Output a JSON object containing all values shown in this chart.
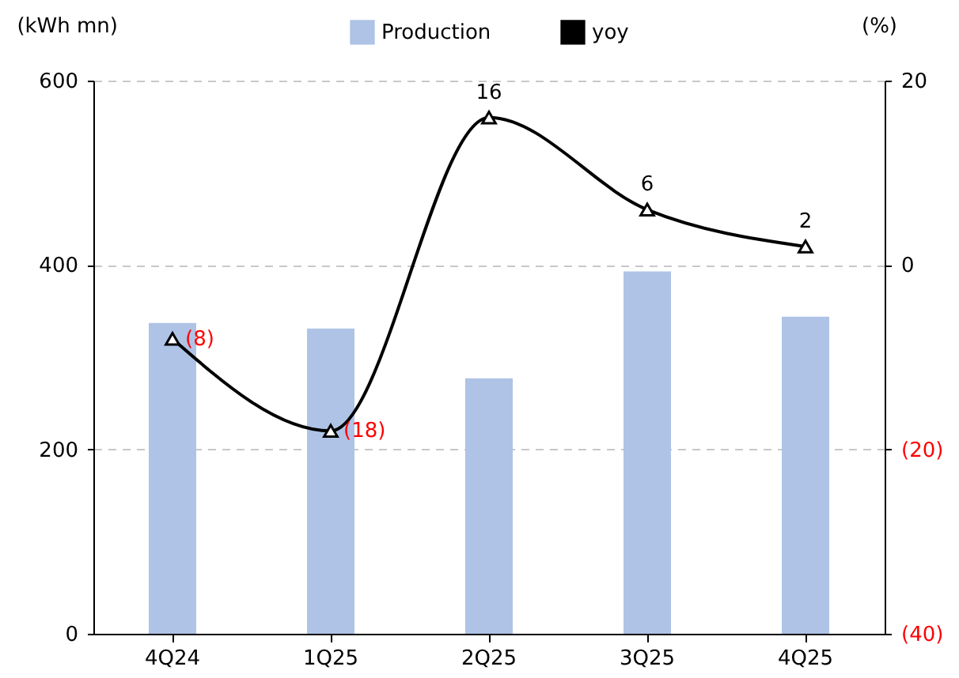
{
  "chart_data": {
    "type": "bar",
    "categories": [
      "4Q24",
      "1Q25",
      "2Q25",
      "3Q25",
      "4Q25"
    ],
    "series": [
      {
        "name": "Production",
        "color": "#aec3e6",
        "values": [
          337,
          331,
          277,
          393,
          344
        ]
      },
      {
        "name": "yoy",
        "type": "line",
        "axis": "y2",
        "color": "#000000",
        "marker": "triangle",
        "values": [
          -8,
          -18,
          16,
          6,
          2
        ],
        "value_labels": [
          "(8)",
          "(18)",
          "16",
          "6",
          "2"
        ]
      }
    ],
    "ylabel": "(kWh mn)",
    "y2label": "(%)",
    "ylim": [
      0,
      600
    ],
    "yticks": [
      0,
      200,
      400,
      600
    ],
    "y2lim": [
      -40,
      20
    ],
    "y2ticks": [
      {
        "value": -40,
        "label": "(40)"
      },
      {
        "value": -20,
        "label": "(20)"
      },
      0,
      20
    ],
    "grid": "y",
    "legend": "top"
  }
}
